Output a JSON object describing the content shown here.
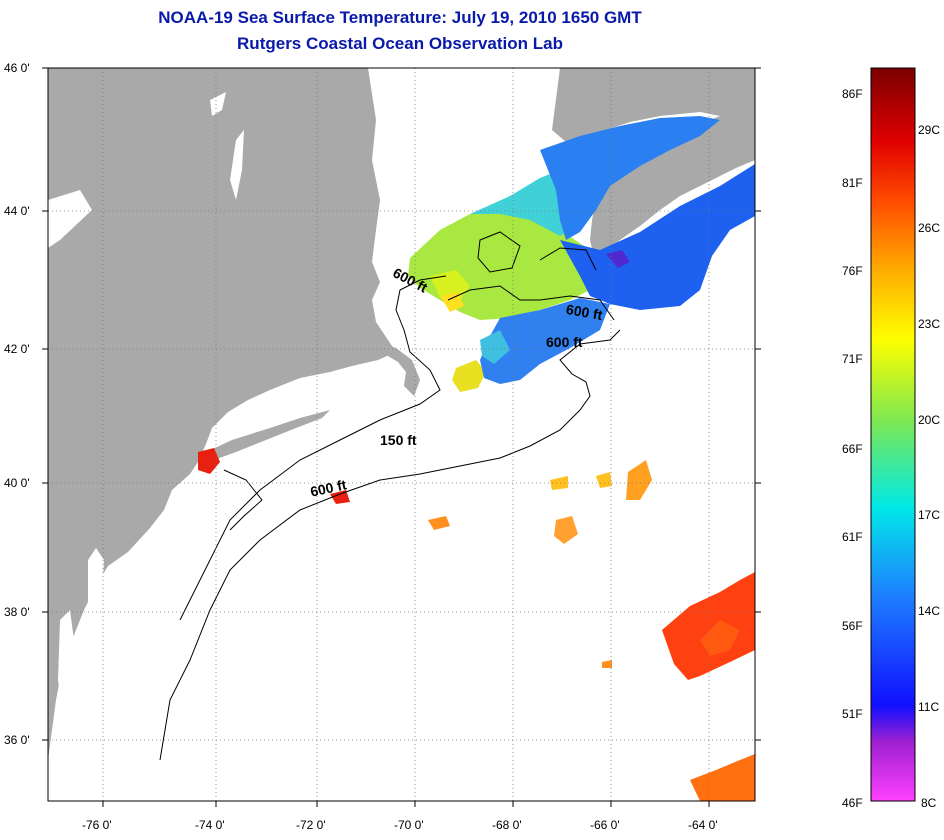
{
  "header": {
    "title_line1": "NOAA-19 Sea Surface Temperature:  July 19, 2010 1650 GMT",
    "title_line2": "Rutgers Coastal Ocean Observation Lab"
  },
  "map": {
    "lat_labels": [
      "46 0'",
      "44 0'",
      "42 0'",
      "40 0'",
      "38 0'",
      "36 0'"
    ],
    "lon_labels": [
      "-76 0'",
      "-74 0'",
      "-72 0'",
      "-70 0'",
      "-68 0'",
      "-66 0'",
      "-64 0'"
    ],
    "contour_labels": [
      "600 ft",
      "600 ft",
      "600 ft",
      "150 ft",
      "600 ft"
    ],
    "colors": {
      "land": "#a9a9a9",
      "ocean": "#ffffff",
      "title": "#0a1aa8"
    }
  },
  "colorbar": {
    "fahrenheit": [
      "86F",
      "81F",
      "76F",
      "71F",
      "66F",
      "61F",
      "56F",
      "51F",
      "46F"
    ],
    "celsius": [
      "29C",
      "26C",
      "23C",
      "20C",
      "17C",
      "14C",
      "11C",
      "8C"
    ]
  }
}
